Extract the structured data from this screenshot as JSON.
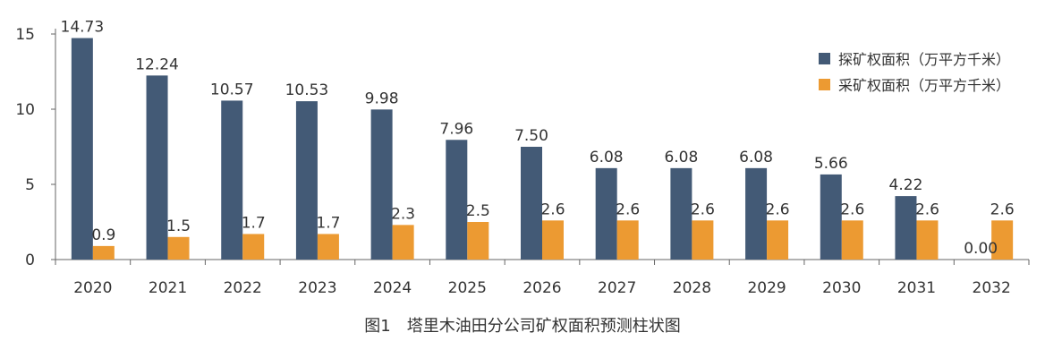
{
  "chart_data": {
    "type": "bar",
    "title": "",
    "caption": "图1　塔里木油田分公司矿权面积预测柱状图",
    "xlabel": "",
    "ylabel": "",
    "ylim": [
      0,
      15
    ],
    "yticks": [
      0,
      5,
      10,
      15
    ],
    "grid": false,
    "legend_position": "top-right",
    "categories": [
      "2020",
      "2021",
      "2022",
      "2023",
      "2024",
      "2025",
      "2026",
      "2027",
      "2028",
      "2029",
      "2030",
      "2031",
      "2032"
    ],
    "series": [
      {
        "name": "探矿权面积（万平方千米）",
        "color": "#435a76",
        "values": [
          14.73,
          12.24,
          10.57,
          10.53,
          9.98,
          7.96,
          7.5,
          6.08,
          6.08,
          6.08,
          5.66,
          4.22,
          0.0
        ],
        "labels": [
          "14.73",
          "12.24",
          "10.57",
          "10.53",
          "9.98",
          "7.96",
          "7.50",
          "6.08",
          "6.08",
          "6.08",
          "5.66",
          "4.22",
          "0.00"
        ]
      },
      {
        "name": "采矿权面积（万平方千米）",
        "color": "#ec9a32",
        "values": [
          0.9,
          1.5,
          1.7,
          1.7,
          2.3,
          2.5,
          2.6,
          2.6,
          2.6,
          2.6,
          2.6,
          2.6,
          2.6
        ],
        "labels": [
          "0.9",
          "1.5",
          "1.7",
          "1.7",
          "2.3",
          "2.5",
          "2.6",
          "2.6",
          "2.6",
          "2.6",
          "2.6",
          "2.6",
          "2.6"
        ]
      }
    ]
  }
}
